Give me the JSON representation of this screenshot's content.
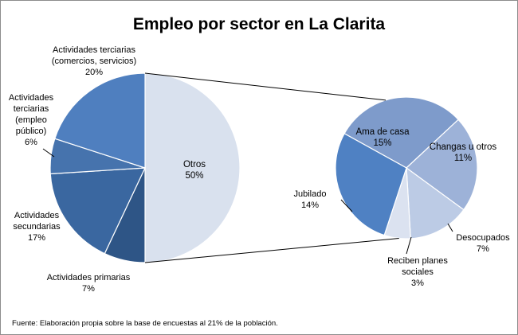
{
  "chart_data": {
    "type": "pie",
    "title": "Empleo por sector en La Clarita",
    "main_pie": {
      "slices": [
        {
          "label_lines": [
            "Otros"
          ],
          "value": 50,
          "display": "50%",
          "color": "#d9e1ee"
        },
        {
          "label_lines": [
            "Actividades primarias"
          ],
          "value": 7,
          "display": "7%",
          "color": "#2e5586"
        },
        {
          "label_lines": [
            "Actividades",
            "secundarias"
          ],
          "value": 17,
          "display": "17%",
          "color": "#3a67a0"
        },
        {
          "label_lines": [
            "Actividades",
            "terciarias",
            "(empleo",
            "público)"
          ],
          "value": 6,
          "display": "6%",
          "color": "#4673ad"
        },
        {
          "label_lines": [
            "Actividades terciarias",
            "(comercios, servicios)"
          ],
          "value": 20,
          "display": "20%",
          "color": "#4f7fbf"
        }
      ]
    },
    "secondary_pie": {
      "parent": "Otros",
      "slices": [
        {
          "label_lines": [
            "Ama de casa"
          ],
          "value": 15,
          "display": "15%",
          "color": "#7e9bcb"
        },
        {
          "label_lines": [
            "Changas u otros"
          ],
          "value": 11,
          "display": "11%",
          "color": "#9db2d8"
        },
        {
          "label_lines": [
            "Desocupados"
          ],
          "value": 7,
          "display": "7%",
          "color": "#bccbe5"
        },
        {
          "label_lines": [
            "Reciben planes",
            "sociales"
          ],
          "value": 3,
          "display": "3%",
          "color": "#dbe2f0"
        },
        {
          "label_lines": [
            "Jubilado"
          ],
          "value": 14,
          "display": "14%",
          "color": "#4f81c3"
        }
      ]
    },
    "source_note": "Fuente: Elaboración propia sobre la base de encuestas al 21%  de la población."
  }
}
